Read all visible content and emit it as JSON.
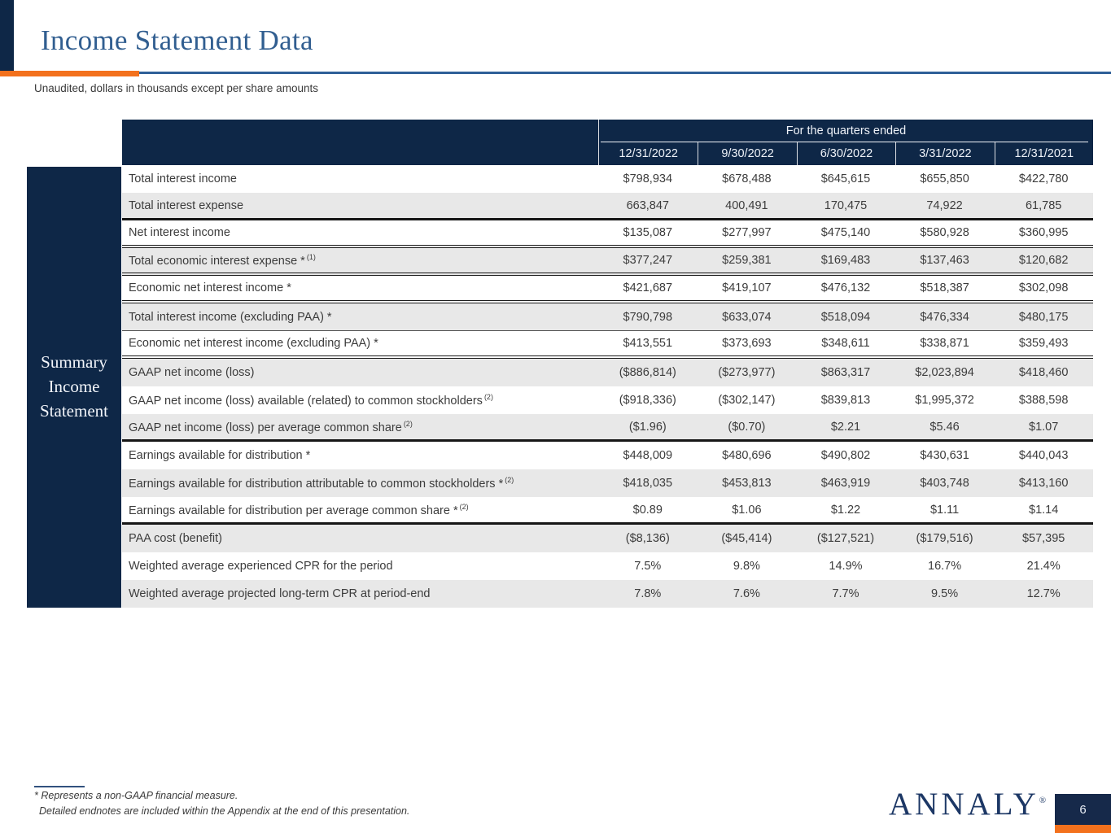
{
  "page": {
    "title": "Income Statement Data",
    "subtitle": "Unaudited, dollars in thousands except per share amounts",
    "page_number": "6"
  },
  "colors": {
    "navy": "#0e2747",
    "orange": "#f3711d",
    "title_blue": "#315e90",
    "rule_blue": "#2e5f98"
  },
  "sidebar": {
    "label": "Summary Income Statement"
  },
  "table": {
    "header": {
      "group_label": "For the quarters ended",
      "columns": [
        "12/31/2022",
        "9/30/2022",
        "6/30/2022",
        "3/31/2022",
        "12/31/2021"
      ]
    },
    "rows": [
      {
        "label": "Total interest income",
        "sup": "",
        "values": [
          "$798,934",
          "$678,488",
          "$645,615",
          "$655,850",
          "$422,780"
        ],
        "divider": ""
      },
      {
        "label": "Total interest expense",
        "sup": "",
        "values": [
          "663,847",
          "400,491",
          "170,475",
          "74,922",
          "61,785"
        ],
        "divider": "thick"
      },
      {
        "label": "Net interest income",
        "sup": "",
        "values": [
          "$135,087",
          "$277,997",
          "$475,140",
          "$580,928",
          "$360,995"
        ],
        "divider": "double"
      },
      {
        "label": "Total economic interest expense *",
        "sup": "(1)",
        "values": [
          "$377,247",
          "$259,381",
          "$169,483",
          "$137,463",
          "$120,682"
        ],
        "divider": "double"
      },
      {
        "label": "Economic net interest income *",
        "sup": "",
        "values": [
          "$421,687",
          "$419,107",
          "$476,132",
          "$518,387",
          "$302,098"
        ],
        "divider": "double"
      },
      {
        "label": "Total interest income (excluding PAA) *",
        "sup": "",
        "values": [
          "$790,798",
          "$633,074",
          "$518,094",
          "$476,334",
          "$480,175"
        ],
        "divider": "thindark"
      },
      {
        "label": "Economic net interest income (excluding PAA) *",
        "sup": "",
        "values": [
          "$413,551",
          "$373,693",
          "$348,611",
          "$338,871",
          "$359,493"
        ],
        "divider": "double"
      },
      {
        "label": "GAAP net income (loss)",
        "sup": "",
        "values": [
          "($886,814)",
          "($273,977)",
          "$863,317",
          "$2,023,894",
          "$418,460"
        ],
        "divider": ""
      },
      {
        "label": "GAAP net income (loss) available (related) to common stockholders",
        "sup": "(2)",
        "values": [
          "($918,336)",
          "($302,147)",
          "$839,813",
          "$1,995,372",
          "$388,598"
        ],
        "divider": ""
      },
      {
        "label": "GAAP net income (loss) per average common share",
        "sup": "(2)",
        "values": [
          "($1.96)",
          "($0.70)",
          "$2.21",
          "$5.46",
          "$1.07"
        ],
        "divider": "thick"
      },
      {
        "label": "Earnings available for distribution *",
        "sup": "",
        "values": [
          "$448,009",
          "$480,696",
          "$490,802",
          "$430,631",
          "$440,043"
        ],
        "divider": ""
      },
      {
        "label": "Earnings available for distribution attributable to common stockholders *",
        "sup": "(2)",
        "values": [
          "$418,035",
          "$453,813",
          "$463,919",
          "$403,748",
          "$413,160"
        ],
        "divider": ""
      },
      {
        "label": "Earnings available for distribution per average common share *",
        "sup": "(2)",
        "values": [
          "$0.89",
          "$1.06",
          "$1.22",
          "$1.11",
          "$1.14"
        ],
        "divider": "thick"
      },
      {
        "label": "PAA cost (benefit)",
        "sup": "",
        "values": [
          "($8,136)",
          "($45,414)",
          "($127,521)",
          "($179,516)",
          "$57,395"
        ],
        "divider": ""
      },
      {
        "label": "Weighted average experienced CPR for the period",
        "sup": "",
        "values": [
          "7.5%",
          "9.8%",
          "14.9%",
          "16.7%",
          "21.4%"
        ],
        "divider": ""
      },
      {
        "label": "Weighted average projected long-term CPR at period-end",
        "sup": "",
        "values": [
          "7.8%",
          "7.6%",
          "7.7%",
          "9.5%",
          "12.7%"
        ],
        "divider": ""
      }
    ]
  },
  "footnotes": {
    "line1": "* Represents a non-GAAP financial measure.",
    "line2": "Detailed endnotes are included within the Appendix at the end of this presentation."
  },
  "branding": {
    "logo_text": "ANNALY",
    "registered_mark": "®"
  }
}
